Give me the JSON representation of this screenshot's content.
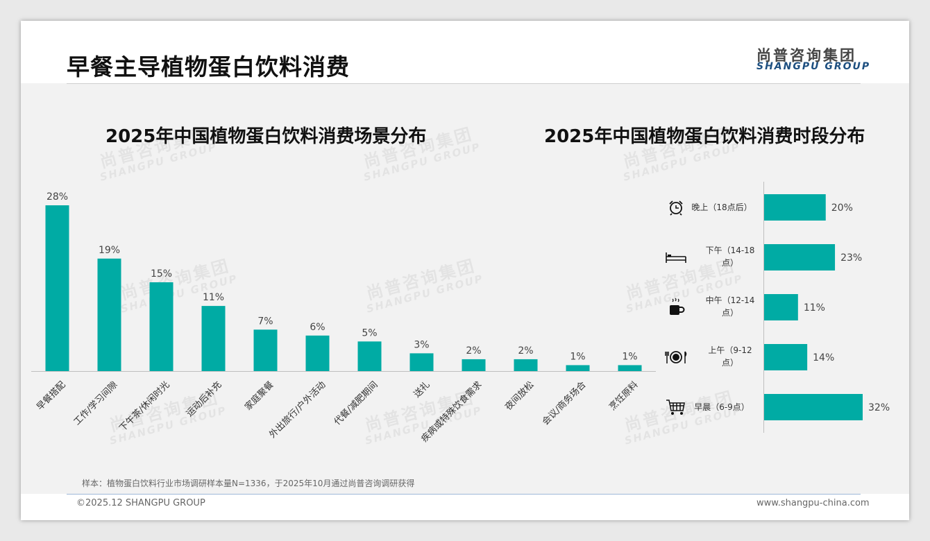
{
  "page": {
    "title": "早餐主导植物蛋白饮料消费",
    "logo_cn": "尚普咨询集团",
    "logo_en": "SHANGPU GROUP",
    "sample_note": "样本：植物蛋白饮料行业市场调研样本量N=1336，于2025年10月通过尚普咨询调研获得",
    "copyright": "©2025.12 SHANGPU GROUP",
    "website": "www.shangpu-china.com"
  },
  "colors": {
    "bar": "#00ABA4",
    "axis": "#bfbfbf",
    "label": "#333333",
    "value": "#444444"
  },
  "chart_data": [
    {
      "type": "bar",
      "title": "2025年中国植物蛋白饮料消费场景分布",
      "categories": [
        "早餐搭配",
        "工作/学习间隙",
        "下午茶/休闲时光",
        "运动后补充",
        "家庭聚餐",
        "外出旅行/户外活动",
        "代餐/减肥期间",
        "送礼",
        "疾病或特殊饮食需求",
        "夜间放松",
        "会议/商务场合",
        "烹饪原料"
      ],
      "values": [
        28,
        19,
        15,
        11,
        7,
        6,
        5,
        3,
        2,
        2,
        1,
        1
      ],
      "labels": [
        "28%",
        "19%",
        "15%",
        "11%",
        "7%",
        "6%",
        "5%",
        "3%",
        "2%",
        "2%",
        "1%",
        "1%"
      ],
      "unit": "%",
      "ylim": [
        0,
        28
      ]
    },
    {
      "type": "bar",
      "orientation": "horizontal",
      "title": "2025年中国植物蛋白饮料消费时段分布",
      "categories": [
        {
          "label": "晚上（18点后）",
          "icon": "alarm-clock-icon"
        },
        {
          "label": "下午（14-18点）",
          "icon": "bed-icon"
        },
        {
          "label": "中午（12-14点）",
          "icon": "coffee-cup-icon"
        },
        {
          "label": "上午（9-12点）",
          "icon": "dining-plate-icon"
        },
        {
          "label": "早晨（6-9点）",
          "icon": "shopping-cart-icon"
        }
      ],
      "values": [
        20,
        23,
        11,
        14,
        32
      ],
      "labels": [
        "20%",
        "23%",
        "11%",
        "14%",
        "32%"
      ],
      "unit": "%",
      "xlim": [
        0,
        32
      ]
    }
  ]
}
